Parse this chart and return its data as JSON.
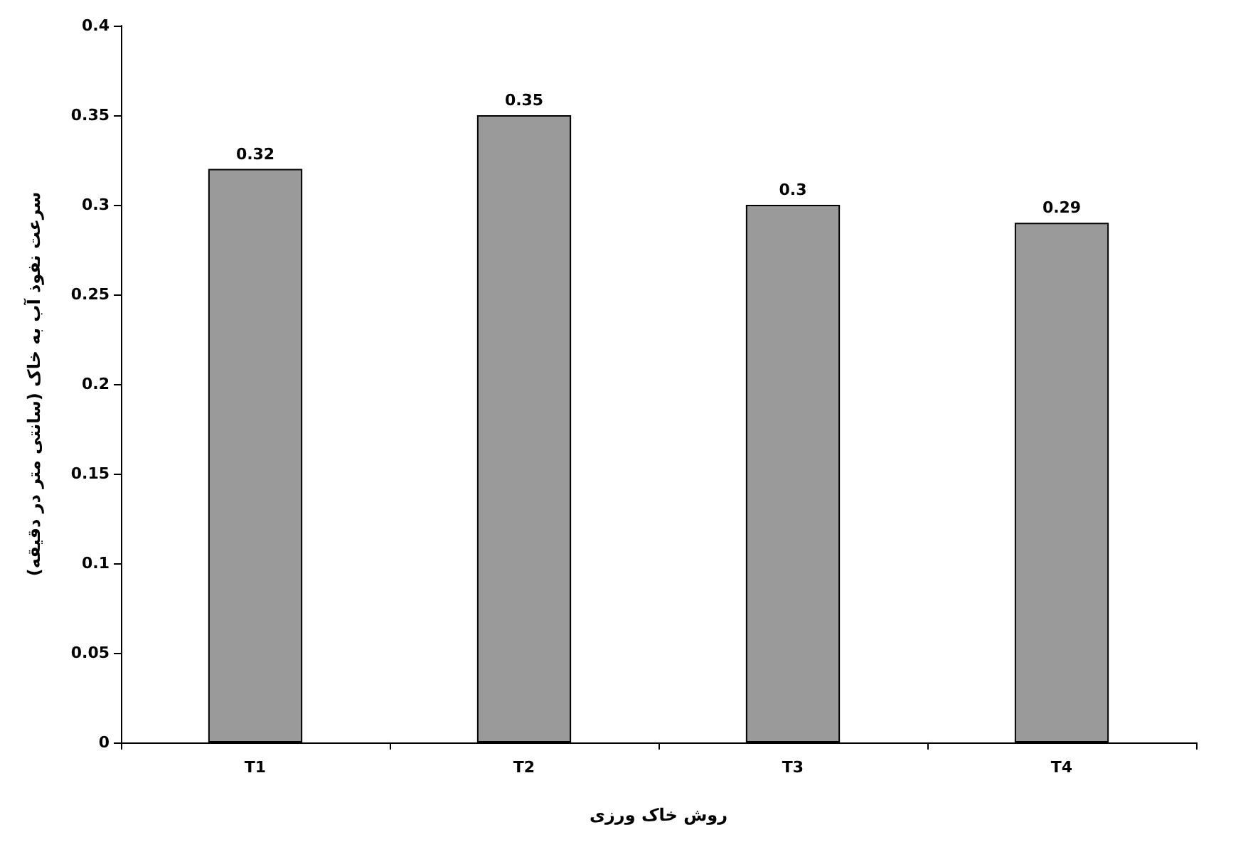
{
  "chart_data": {
    "type": "bar",
    "xlabel": "روش خاک ورزی",
    "ylabel": "سرعت نفوذ آب به خاک (سانتی متر در دقیقه)",
    "categories": [
      "T1",
      "T2",
      "T3",
      "T4"
    ],
    "values": [
      0.32,
      0.35,
      0.3,
      0.29
    ],
    "color": "#9a9a9a",
    "ylim": [
      0,
      0.4
    ],
    "yticks": [
      0,
      0.05,
      0.1,
      0.15,
      0.2,
      0.25,
      0.3,
      0.35,
      0.4
    ],
    "grid": false,
    "data_labels": true
  }
}
